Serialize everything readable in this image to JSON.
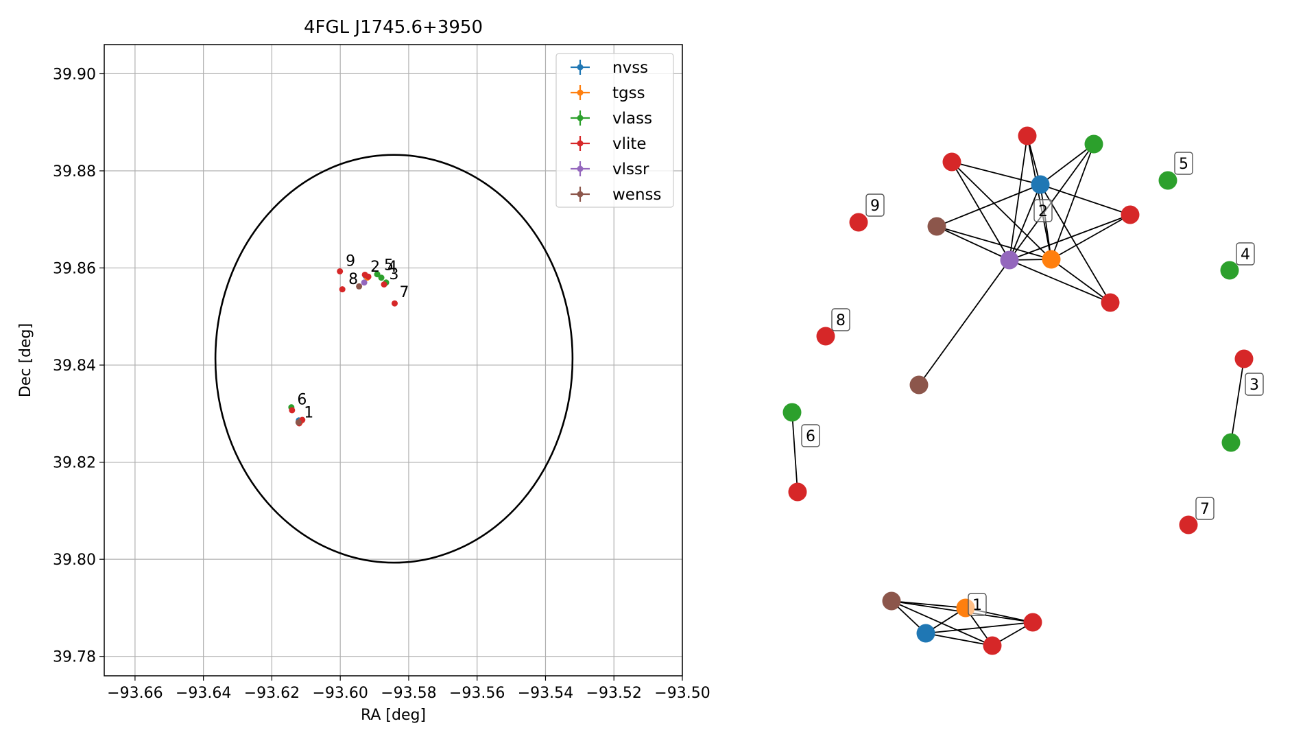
{
  "chart_data": [
    {
      "type": "scatter",
      "title": "4FGL J1745.6+3950",
      "xlabel": "RA [deg]",
      "ylabel": "Dec [deg]",
      "xlim": [
        -93.669,
        -93.5
      ],
      "ylim": [
        39.776,
        39.906
      ],
      "xticks": [
        -93.66,
        -93.64,
        -93.62,
        -93.6,
        -93.58,
        -93.56,
        -93.54,
        -93.52,
        -93.5
      ],
      "xtick_labels": [
        "−93.66",
        "−93.64",
        "−93.62",
        "−93.60",
        "−93.58",
        "−93.56",
        "−93.54",
        "−93.52",
        "−93.50"
      ],
      "yticks": [
        39.78,
        39.8,
        39.82,
        39.84,
        39.86,
        39.88,
        39.9
      ],
      "ytick_labels": [
        "39.78",
        "39.80",
        "39.82",
        "39.84",
        "39.86",
        "39.88",
        "39.90"
      ],
      "grid": true,
      "legend_position": "top-right",
      "ellipse": {
        "center_ra": -93.5843,
        "center_dec": 39.8413,
        "semi_ra": 0.0522,
        "semi_dec": 0.042
      },
      "series": [
        {
          "name": "nvss",
          "color": "#1f77b4",
          "points": [
            [
              -93.5925,
              39.8583
            ],
            [
              -93.6121,
              39.8286
            ]
          ]
        },
        {
          "name": "tgss",
          "color": "#ff7f0e",
          "points": [
            [
              -93.5921,
              39.858
            ],
            [
              -93.6116,
              39.8284
            ]
          ]
        },
        {
          "name": "vlass",
          "color": "#2ca02c",
          "points": [
            [
              -93.5892,
              39.8587
            ],
            [
              -93.588,
              39.858
            ],
            [
              -93.5866,
              39.857
            ],
            [
              -93.6143,
              39.8313
            ]
          ]
        },
        {
          "name": "vlite",
          "color": "#d62728",
          "points": [
            [
              -93.5928,
              39.8586
            ],
            [
              -93.5918,
              39.8582
            ],
            [
              -93.5872,
              39.8566
            ],
            [
              -93.5841,
              39.8527
            ],
            [
              -93.5994,
              39.8556
            ],
            [
              -93.6001,
              39.8593
            ],
            [
              -93.6141,
              39.8307
            ],
            [
              -93.6111,
              39.8287
            ],
            [
              -93.612,
              39.828
            ]
          ]
        },
        {
          "name": "vlssr",
          "color": "#9467bd",
          "points": [
            [
              -93.593,
              39.857
            ]
          ]
        },
        {
          "name": "wenss",
          "color": "#8c564b",
          "points": [
            [
              -93.5945,
              39.8562
            ],
            [
              -93.6122,
              39.8282
            ]
          ]
        }
      ],
      "annotations": [
        {
          "text": "9",
          "ra": -93.5984,
          "dec": 39.8604
        },
        {
          "text": "2",
          "ra": -93.5912,
          "dec": 39.8592
        },
        {
          "text": "5",
          "ra": -93.5872,
          "dec": 39.8596
        },
        {
          "text": "4",
          "ra": -93.5862,
          "dec": 39.8592
        },
        {
          "text": "3",
          "ra": -93.5857,
          "dec": 39.8577
        },
        {
          "text": "8",
          "ra": -93.5976,
          "dec": 39.8567
        },
        {
          "text": "7",
          "ra": -93.5827,
          "dec": 39.854
        },
        {
          "text": "6",
          "ra": -93.6126,
          "dec": 39.8319
        },
        {
          "text": "1",
          "ra": -93.6106,
          "dec": 39.8292
        }
      ]
    },
    {
      "type": "network",
      "nodes": [
        {
          "id": "g2_vlite_top",
          "color": "#d62728"
        },
        {
          "id": "g2_vlass",
          "color": "#2ca02c"
        },
        {
          "id": "g2_vlite_left",
          "color": "#d62728"
        },
        {
          "id": "g2_nvss",
          "color": "#1f77b4"
        },
        {
          "id": "g2_vlite_right",
          "color": "#d62728"
        },
        {
          "id": "g2_wenss",
          "color": "#8c564b"
        },
        {
          "id": "g2_vlssr",
          "color": "#9467bd"
        },
        {
          "id": "g2_tgss",
          "color": "#ff7f0e"
        },
        {
          "id": "g2_vlite_bottom",
          "color": "#d62728"
        },
        {
          "id": "g2_wenss_low",
          "color": "#8c564b"
        },
        {
          "id": "c5_vlass",
          "color": "#2ca02c"
        },
        {
          "id": "c9_vlite",
          "color": "#d62728"
        },
        {
          "id": "c4_vlass",
          "color": "#2ca02c"
        },
        {
          "id": "c8_vlite",
          "color": "#d62728"
        },
        {
          "id": "c3_vlite",
          "color": "#d62728"
        },
        {
          "id": "c3_vlass",
          "color": "#2ca02c"
        },
        {
          "id": "c6_vlass",
          "color": "#2ca02c"
        },
        {
          "id": "c6_vlite",
          "color": "#d62728"
        },
        {
          "id": "c7_vlite",
          "color": "#d62728"
        },
        {
          "id": "g1_wenss",
          "color": "#8c564b"
        },
        {
          "id": "g1_tgss",
          "color": "#ff7f0e"
        },
        {
          "id": "g1_vlite_right",
          "color": "#d62728"
        },
        {
          "id": "g1_nvss",
          "color": "#1f77b4"
        },
        {
          "id": "g1_vlite_bottom",
          "color": "#d62728"
        }
      ],
      "edges": [
        [
          "g2_vlite_top",
          "g2_nvss"
        ],
        [
          "g2_vlite_top",
          "g2_vlssr"
        ],
        [
          "g2_vlite_top",
          "g2_tgss"
        ],
        [
          "g2_vlass",
          "g2_nvss"
        ],
        [
          "g2_vlass",
          "g2_vlssr"
        ],
        [
          "g2_vlass",
          "g2_tgss"
        ],
        [
          "g2_vlite_left",
          "g2_nvss"
        ],
        [
          "g2_vlite_left",
          "g2_vlssr"
        ],
        [
          "g2_vlite_left",
          "g2_tgss"
        ],
        [
          "g2_nvss",
          "g2_wenss"
        ],
        [
          "g2_nvss",
          "g2_vlite_right"
        ],
        [
          "g2_nvss",
          "g2_vlssr"
        ],
        [
          "g2_nvss",
          "g2_tgss"
        ],
        [
          "g2_nvss",
          "g2_vlite_bottom"
        ],
        [
          "g2_vlite_right",
          "g2_vlssr"
        ],
        [
          "g2_vlite_right",
          "g2_tgss"
        ],
        [
          "g2_wenss",
          "g2_vlssr"
        ],
        [
          "g2_wenss",
          "g2_tgss"
        ],
        [
          "g2_vlssr",
          "g2_tgss"
        ],
        [
          "g2_vlssr",
          "g2_vlite_bottom"
        ],
        [
          "g2_vlssr",
          "g2_wenss_low"
        ],
        [
          "g2_tgss",
          "g2_vlite_bottom"
        ],
        [
          "c3_vlite",
          "c3_vlass"
        ],
        [
          "c6_vlass",
          "c6_vlite"
        ],
        [
          "g1_wenss",
          "g1_tgss"
        ],
        [
          "g1_wenss",
          "g1_vlite_right"
        ],
        [
          "g1_wenss",
          "g1_nvss"
        ],
        [
          "g1_wenss",
          "g1_vlite_bottom"
        ],
        [
          "g1_tgss",
          "g1_nvss"
        ],
        [
          "g1_tgss",
          "g1_vlite_bottom"
        ],
        [
          "g1_tgss",
          "g1_vlite_right"
        ],
        [
          "g1_nvss",
          "g1_vlite_right"
        ],
        [
          "g1_nvss",
          "g1_vlite_bottom"
        ],
        [
          "g1_vlite_right",
          "g1_vlite_bottom"
        ]
      ],
      "labels": [
        {
          "text": "1",
          "node": "g1_tgss"
        },
        {
          "text": "2",
          "node": "g2_nvss"
        },
        {
          "text": "3",
          "node": "c3_vlite"
        },
        {
          "text": "4",
          "node": "c4_vlass"
        },
        {
          "text": "5",
          "node": "c5_vlass"
        },
        {
          "text": "6",
          "node": "c6_vlass"
        },
        {
          "text": "7",
          "node": "c7_vlite"
        },
        {
          "text": "8",
          "node": "c8_vlite"
        },
        {
          "text": "9",
          "node": "c9_vlite"
        }
      ]
    }
  ]
}
